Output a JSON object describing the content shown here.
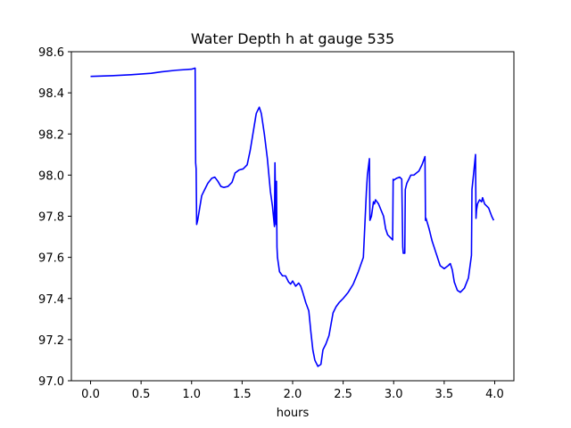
{
  "chart_data": {
    "type": "line",
    "title": "Water Depth h at gauge 535",
    "xlabel": "hours",
    "ylabel": "",
    "xlim": [
      -0.19,
      4.19
    ],
    "ylim": [
      97.0,
      98.6
    ],
    "xticks": [
      0.0,
      0.5,
      1.0,
      1.5,
      2.0,
      2.5,
      3.0,
      3.5,
      4.0
    ],
    "xtick_labels": [
      "0.0",
      "0.5",
      "1.0",
      "1.5",
      "2.0",
      "2.5",
      "3.0",
      "3.5",
      "4.0"
    ],
    "yticks": [
      97.0,
      97.2,
      97.4,
      97.6,
      97.8,
      98.0,
      98.2,
      98.4,
      98.6
    ],
    "ytick_labels": [
      "97.0",
      "97.2",
      "97.4",
      "97.6",
      "97.8",
      "98.0",
      "98.2",
      "98.4",
      "98.6"
    ],
    "grid": false,
    "series": [
      {
        "color": "#0000ff",
        "x": [
          0.0,
          0.2,
          0.4,
          0.6,
          0.7,
          0.85,
          1.0,
          1.03,
          1.035,
          1.04,
          1.045,
          1.05,
          1.06,
          1.08,
          1.1,
          1.13,
          1.16,
          1.2,
          1.23,
          1.26,
          1.29,
          1.32,
          1.36,
          1.4,
          1.43,
          1.47,
          1.51,
          1.55,
          1.58,
          1.61,
          1.64,
          1.67,
          1.69,
          1.72,
          1.75,
          1.78,
          1.8,
          1.82,
          1.825,
          1.83,
          1.835,
          1.84,
          1.845,
          1.85,
          1.87,
          1.9,
          1.93,
          1.96,
          1.98,
          2.0,
          2.03,
          2.06,
          2.08,
          2.1,
          2.13,
          2.16,
          2.18,
          2.2,
          2.22,
          2.25,
          2.28,
          2.3,
          2.33,
          2.36,
          2.4,
          2.43,
          2.46,
          2.5,
          2.55,
          2.6,
          2.65,
          2.7,
          2.73,
          2.74,
          2.76,
          2.765,
          2.78,
          2.8,
          2.81,
          2.82,
          2.85,
          2.9,
          2.92,
          2.94,
          2.96,
          2.99,
          2.995,
          3.0,
          3.03,
          3.06,
          3.08,
          3.09,
          3.095,
          3.11,
          3.115,
          3.13,
          3.17,
          3.2,
          3.25,
          3.28,
          3.31,
          3.315,
          3.32,
          3.35,
          3.38,
          3.42,
          3.46,
          3.5,
          3.54,
          3.56,
          3.58,
          3.6,
          3.63,
          3.66,
          3.7,
          3.74,
          3.77,
          3.775,
          3.79,
          3.81,
          3.815,
          3.82,
          3.83,
          3.85,
          3.87,
          3.88,
          3.9,
          3.94,
          3.97,
          3.99
        ],
        "y": [
          98.48,
          98.483,
          98.488,
          98.495,
          98.502,
          98.51,
          98.515,
          98.52,
          98.52,
          98.06,
          98.03,
          97.76,
          97.78,
          97.84,
          97.9,
          97.93,
          97.96,
          97.985,
          97.99,
          97.97,
          97.945,
          97.94,
          97.945,
          97.965,
          98.01,
          98.025,
          98.03,
          98.05,
          98.12,
          98.21,
          98.3,
          98.33,
          98.3,
          98.2,
          98.08,
          97.92,
          97.85,
          97.75,
          98.06,
          97.9,
          97.76,
          97.97,
          97.65,
          97.6,
          97.53,
          97.51,
          97.51,
          97.48,
          97.47,
          97.485,
          97.46,
          97.475,
          97.46,
          97.43,
          97.38,
          97.34,
          97.24,
          97.15,
          97.1,
          97.07,
          97.08,
          97.15,
          97.18,
          97.22,
          97.33,
          97.36,
          97.38,
          97.4,
          97.43,
          97.47,
          97.53,
          97.6,
          97.92,
          98.0,
          98.08,
          97.78,
          97.8,
          97.87,
          97.86,
          97.88,
          97.86,
          97.8,
          97.74,
          97.71,
          97.7,
          97.685,
          97.98,
          97.975,
          97.985,
          97.99,
          97.98,
          97.65,
          97.62,
          97.62,
          97.93,
          97.96,
          98.0,
          98.0,
          98.02,
          98.05,
          98.09,
          97.78,
          97.79,
          97.74,
          97.68,
          97.62,
          97.56,
          97.545,
          97.56,
          97.57,
          97.54,
          97.48,
          97.44,
          97.43,
          97.45,
          97.5,
          97.61,
          97.93,
          98.0,
          98.1,
          97.79,
          97.83,
          97.86,
          97.88,
          97.87,
          97.89,
          97.86,
          97.84,
          97.8,
          97.78
        ]
      }
    ]
  }
}
